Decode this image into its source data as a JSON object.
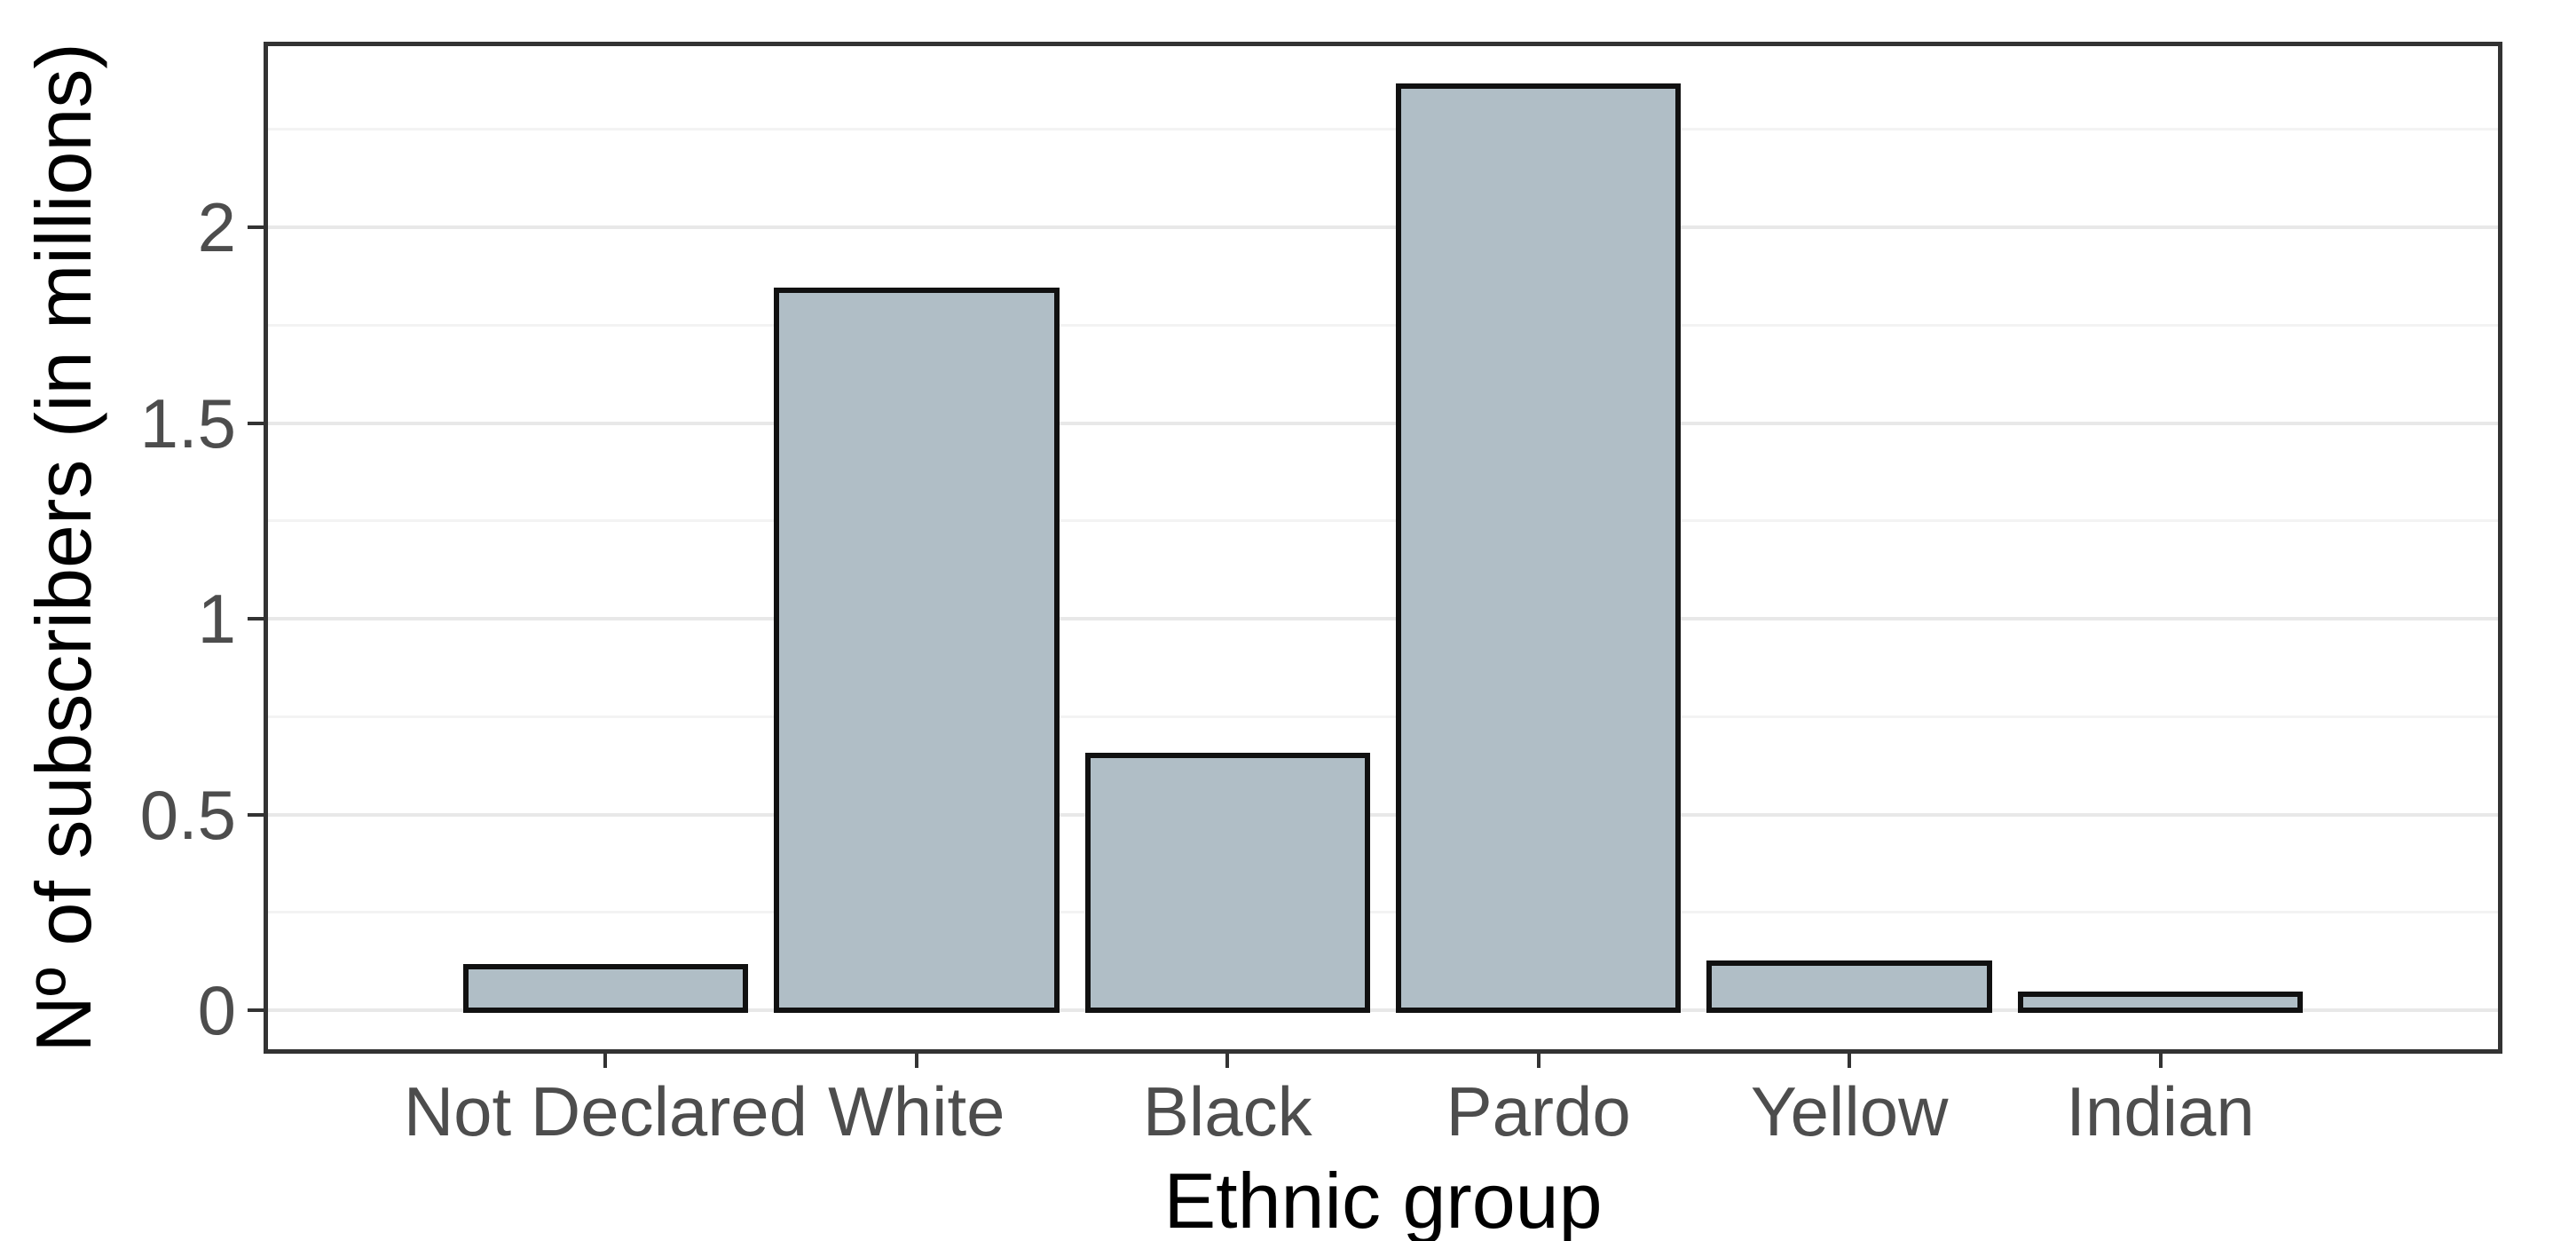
{
  "chart_data": {
    "type": "bar",
    "title": "",
    "categories": [
      "Not Declared",
      "White",
      "Black",
      "Pardo",
      "Yellow",
      "Indian"
    ],
    "values": [
      0.11,
      1.84,
      0.65,
      2.36,
      0.12,
      0.04
    ],
    "xlabel": "Ethnic group",
    "ylabel": "Nº of subscribers (in millions)",
    "yticks": [
      0,
      0.5,
      1,
      1.5,
      2
    ],
    "ytick_labels": [
      "0",
      "0.5",
      "1",
      "1.5",
      "2"
    ],
    "yticks_minor": [
      0.25,
      0.75,
      1.25,
      1.75,
      2.25
    ],
    "ylim": [
      -0.12,
      2.48
    ],
    "grid": "horizontal major+minor",
    "legend": "none",
    "colors": {
      "bar_fill": "#b0bec6",
      "bar_border": "#111111",
      "panel_border": "#333333",
      "grid_major": "#e8e8e8",
      "grid_minor": "#f3f3f3",
      "tick": "#333333",
      "tick_label": "#4d4d4d",
      "axis_title": "#000000",
      "background": "#ffffff"
    }
  }
}
